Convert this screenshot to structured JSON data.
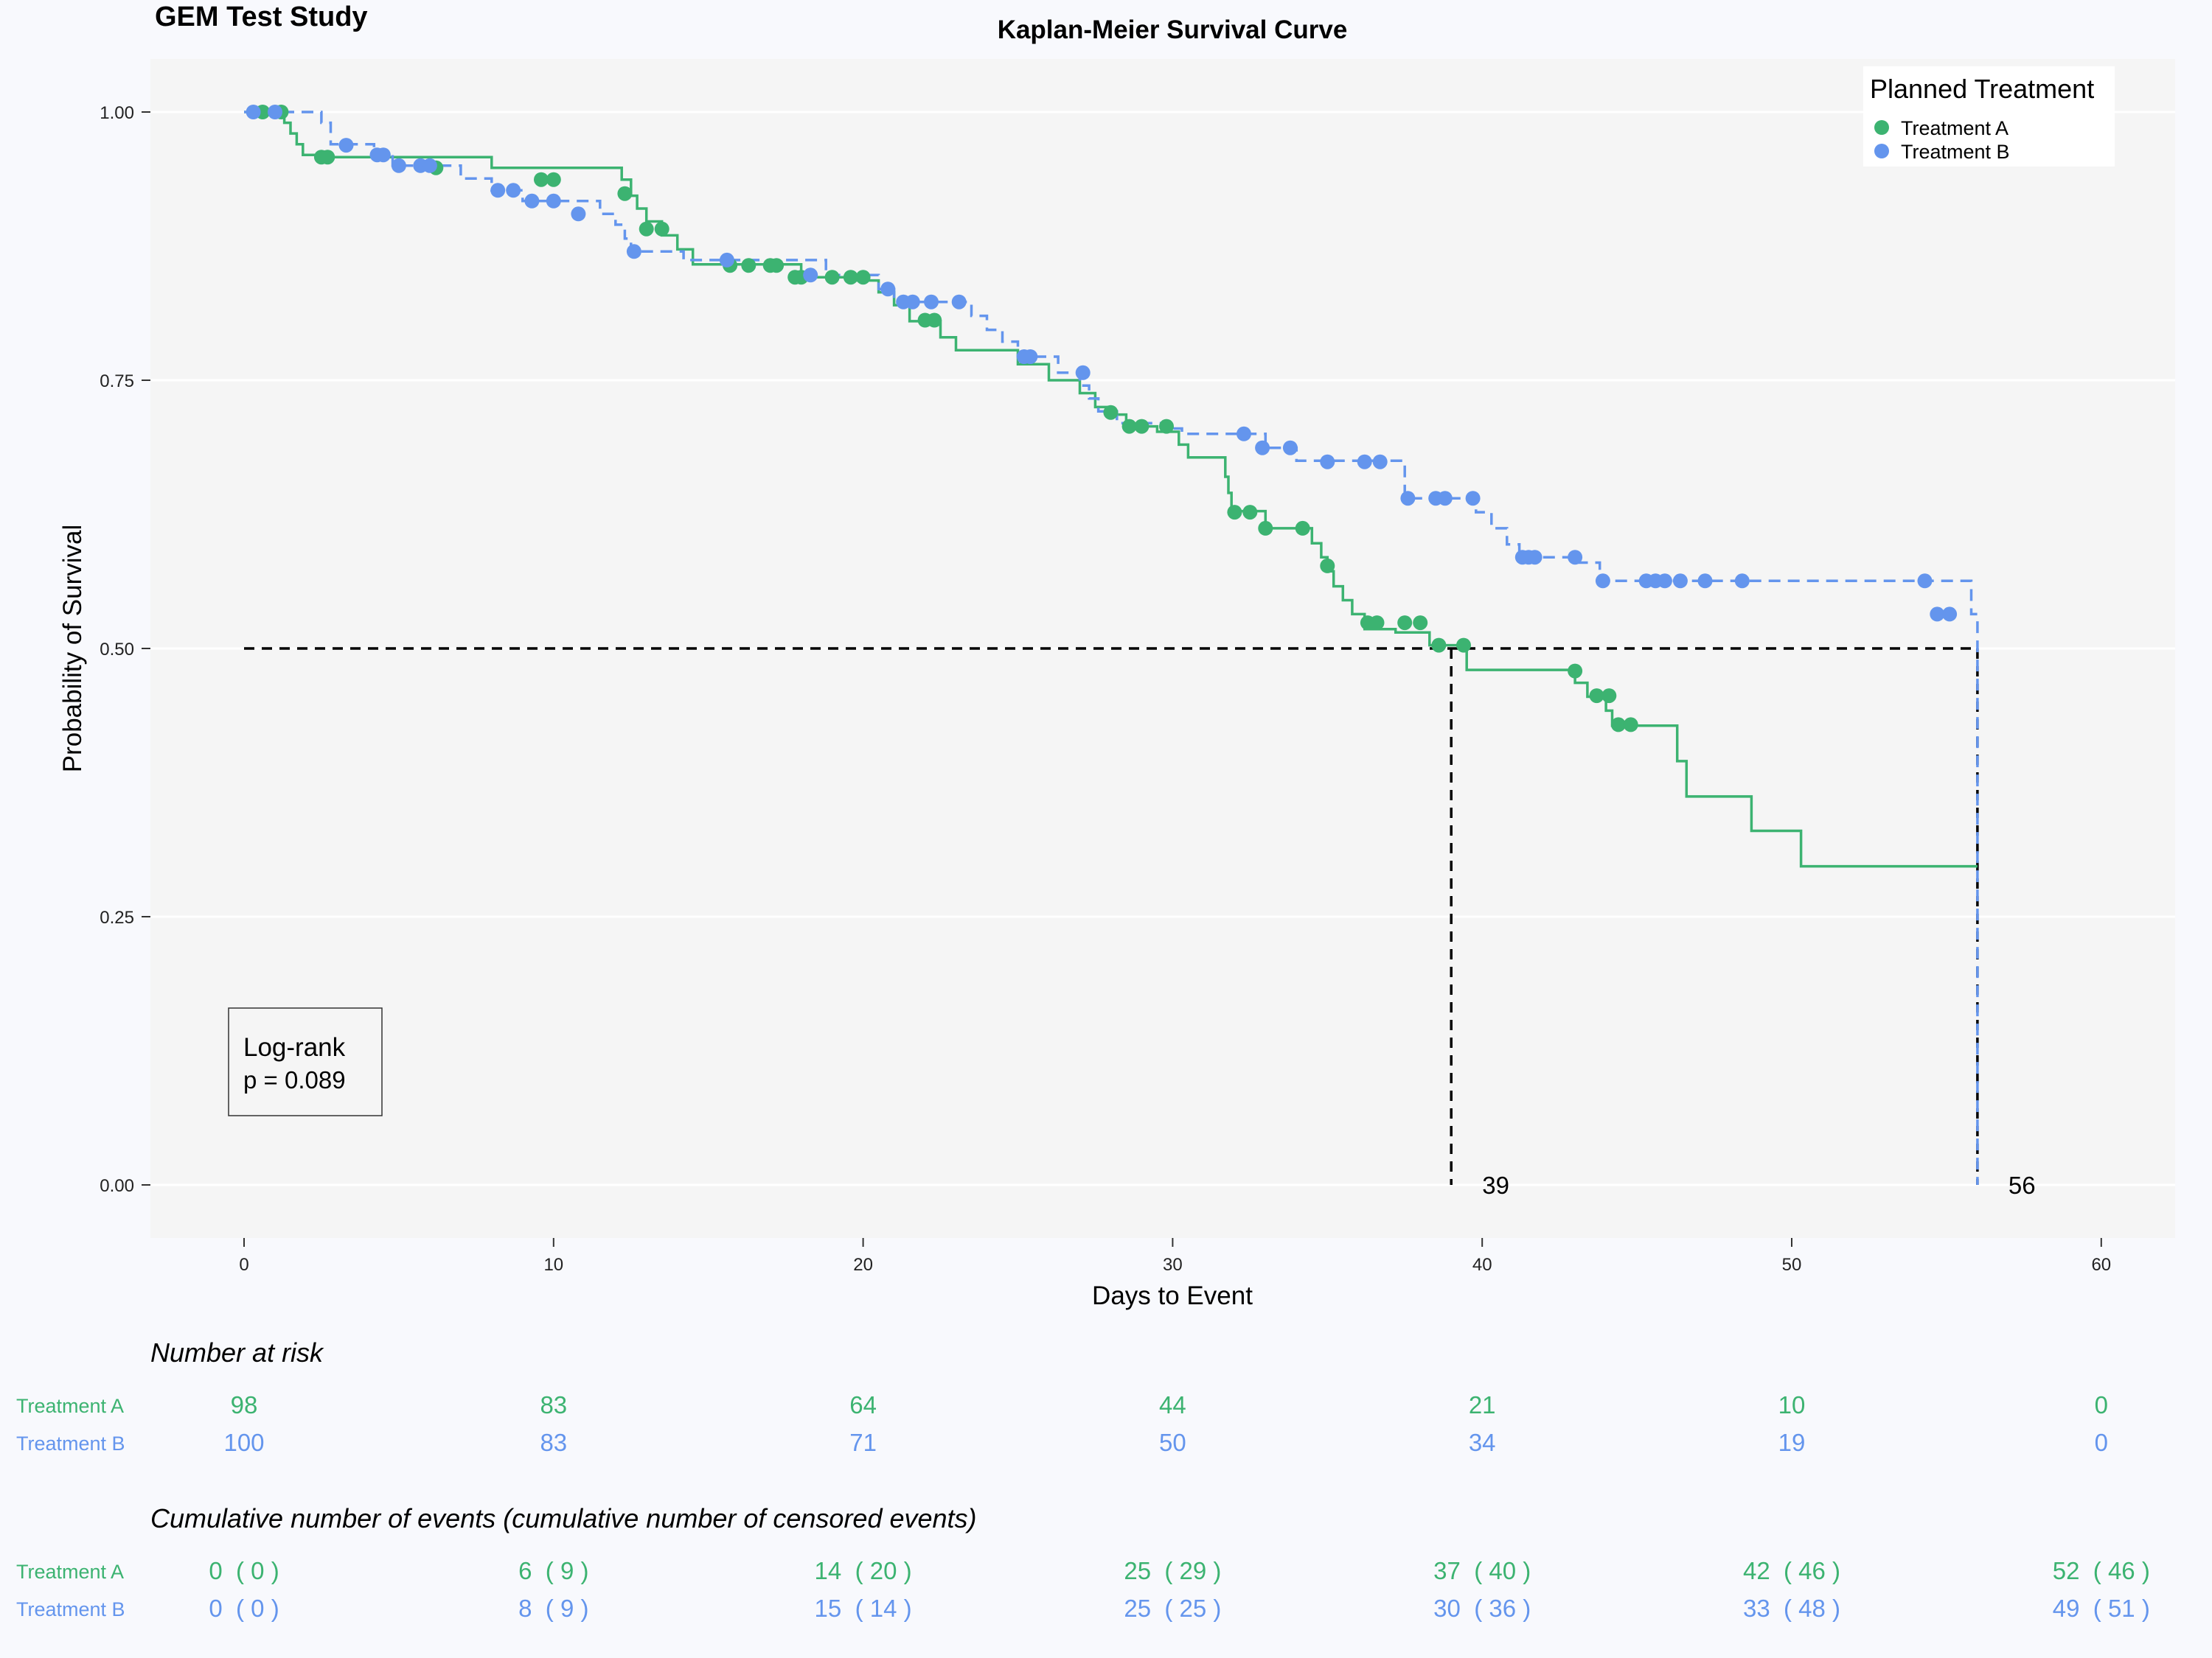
{
  "study_title": "GEM Test Study",
  "colors": {
    "treatment_a": "#3cb371",
    "treatment_b": "#6495ed",
    "panel": "#f5f5f5",
    "median_line": "#000000"
  },
  "chart_data": {
    "type": "line",
    "title": "Kaplan-Meier Survival Curve",
    "xlabel": "Days to Event",
    "ylabel": "Probability of Survival",
    "xlim": [
      -3,
      62
    ],
    "ylim": [
      -0.05,
      1.05
    ],
    "x_ticks": [
      0,
      10,
      20,
      30,
      40,
      50,
      60
    ],
    "y_ticks": [
      0,
      0.25,
      0.5,
      0.75,
      1.0
    ],
    "y_tick_labels": [
      "0.00",
      "0.25",
      "0.50",
      "0.75",
      "1.00"
    ],
    "grid": true,
    "legend": {
      "title": "Planned Treatment",
      "position": "top-right"
    },
    "series": [
      {
        "name": "Treatment A",
        "color": "#3cb371",
        "line_style": "solid",
        "steps": [
          [
            0,
            1.0
          ],
          [
            1.3,
            0.99
          ],
          [
            1.5,
            0.98
          ],
          [
            1.7,
            0.97
          ],
          [
            1.9,
            0.96
          ],
          [
            2.5,
            0.958
          ],
          [
            8,
            0.948
          ],
          [
            12.2,
            0.937
          ],
          [
            12.5,
            0.922
          ],
          [
            12.7,
            0.91
          ],
          [
            13.0,
            0.898
          ],
          [
            13.5,
            0.885
          ],
          [
            14.0,
            0.872
          ],
          [
            14.5,
            0.858
          ],
          [
            18.0,
            0.846
          ],
          [
            19.5,
            0.843
          ],
          [
            20.5,
            0.832
          ],
          [
            21.0,
            0.82
          ],
          [
            21.5,
            0.805
          ],
          [
            22.5,
            0.79
          ],
          [
            23.0,
            0.778
          ],
          [
            25.0,
            0.765
          ],
          [
            26.0,
            0.75
          ],
          [
            27.0,
            0.738
          ],
          [
            27.5,
            0.725
          ],
          [
            28.0,
            0.718
          ],
          [
            28.5,
            0.707
          ],
          [
            29.5,
            0.702
          ],
          [
            30.2,
            0.69
          ],
          [
            30.5,
            0.678
          ],
          [
            31.7,
            0.66
          ],
          [
            31.8,
            0.645
          ],
          [
            31.9,
            0.628
          ],
          [
            33.0,
            0.612
          ],
          [
            34.5,
            0.598
          ],
          [
            34.8,
            0.585
          ],
          [
            35.0,
            0.572
          ],
          [
            35.2,
            0.558
          ],
          [
            35.5,
            0.545
          ],
          [
            35.8,
            0.532
          ],
          [
            36.2,
            0.518
          ],
          [
            37.2,
            0.515
          ],
          [
            38.3,
            0.503
          ],
          [
            39.5,
            0.48
          ],
          [
            43.0,
            0.468
          ],
          [
            43.4,
            0.455
          ],
          [
            44.0,
            0.442
          ],
          [
            44.2,
            0.428
          ],
          [
            46.3,
            0.395
          ],
          [
            46.6,
            0.362
          ],
          [
            48.7,
            0.33
          ],
          [
            50.3,
            0.297
          ],
          [
            56.0,
            0.297
          ]
        ],
        "censored": [
          [
            0.6,
            1.0
          ],
          [
            1.2,
            1.0
          ],
          [
            2.5,
            0.958
          ],
          [
            2.7,
            0.958
          ],
          [
            6.2,
            0.948
          ],
          [
            9.6,
            0.937
          ],
          [
            10.0,
            0.937
          ],
          [
            12.3,
            0.924
          ],
          [
            13.0,
            0.891
          ],
          [
            13.5,
            0.891
          ],
          [
            15.7,
            0.857
          ],
          [
            16.3,
            0.857
          ],
          [
            17.0,
            0.857
          ],
          [
            17.2,
            0.857
          ],
          [
            17.8,
            0.846
          ],
          [
            18.0,
            0.846
          ],
          [
            19.0,
            0.846
          ],
          [
            19.6,
            0.846
          ],
          [
            20.0,
            0.846
          ],
          [
            22.0,
            0.806
          ],
          [
            22.3,
            0.806
          ],
          [
            28.0,
            0.72
          ],
          [
            28.6,
            0.707
          ],
          [
            29.0,
            0.707
          ],
          [
            29.8,
            0.707
          ],
          [
            32.0,
            0.627
          ],
          [
            32.5,
            0.627
          ],
          [
            33.0,
            0.612
          ],
          [
            34.2,
            0.612
          ],
          [
            35.0,
            0.577
          ],
          [
            36.3,
            0.524
          ],
          [
            36.6,
            0.524
          ],
          [
            37.5,
            0.524
          ],
          [
            38.0,
            0.524
          ],
          [
            38.6,
            0.503
          ],
          [
            39.4,
            0.503
          ],
          [
            43.0,
            0.479
          ],
          [
            43.7,
            0.456
          ],
          [
            44.1,
            0.456
          ],
          [
            44.4,
            0.429
          ],
          [
            44.8,
            0.429
          ]
        ]
      },
      {
        "name": "Treatment B",
        "color": "#6495ed",
        "line_style": "dashed",
        "steps": [
          [
            0,
            1.0
          ],
          [
            2.5,
            0.99
          ],
          [
            2.8,
            0.97
          ],
          [
            4.2,
            0.96
          ],
          [
            4.8,
            0.95
          ],
          [
            7.0,
            0.938
          ],
          [
            8.0,
            0.927
          ],
          [
            9.0,
            0.917
          ],
          [
            11.5,
            0.905
          ],
          [
            12.0,
            0.895
          ],
          [
            12.3,
            0.882
          ],
          [
            12.5,
            0.87
          ],
          [
            14.2,
            0.862
          ],
          [
            18.8,
            0.848
          ],
          [
            20.5,
            0.835
          ],
          [
            21.0,
            0.823
          ],
          [
            23.5,
            0.81
          ],
          [
            24.0,
            0.797
          ],
          [
            24.5,
            0.786
          ],
          [
            25.0,
            0.772
          ],
          [
            26.3,
            0.757
          ],
          [
            27.0,
            0.745
          ],
          [
            27.3,
            0.733
          ],
          [
            27.6,
            0.721
          ],
          [
            28.2,
            0.71
          ],
          [
            29.8,
            0.705
          ],
          [
            30.3,
            0.7
          ],
          [
            33.0,
            0.687
          ],
          [
            34.0,
            0.675
          ],
          [
            37.5,
            0.64
          ],
          [
            39.8,
            0.627
          ],
          [
            40.3,
            0.612
          ],
          [
            40.8,
            0.597
          ],
          [
            41.2,
            0.585
          ],
          [
            43.0,
            0.58
          ],
          [
            43.8,
            0.563
          ],
          [
            55.8,
            0.532
          ],
          [
            56.0,
            0.0
          ]
        ],
        "censored": [
          [
            0.3,
            1.0
          ],
          [
            1.0,
            1.0
          ],
          [
            3.3,
            0.969
          ],
          [
            4.3,
            0.96
          ],
          [
            4.5,
            0.96
          ],
          [
            5.0,
            0.95
          ],
          [
            5.7,
            0.95
          ],
          [
            6.0,
            0.95
          ],
          [
            8.2,
            0.927
          ],
          [
            8.7,
            0.927
          ],
          [
            9.3,
            0.917
          ],
          [
            10.0,
            0.917
          ],
          [
            10.8,
            0.905
          ],
          [
            12.6,
            0.87
          ],
          [
            15.6,
            0.862
          ],
          [
            18.3,
            0.848
          ],
          [
            20.8,
            0.835
          ],
          [
            21.3,
            0.823
          ],
          [
            21.6,
            0.823
          ],
          [
            22.2,
            0.823
          ],
          [
            23.1,
            0.823
          ],
          [
            25.2,
            0.772
          ],
          [
            25.4,
            0.772
          ],
          [
            27.1,
            0.757
          ],
          [
            32.3,
            0.7
          ],
          [
            32.9,
            0.687
          ],
          [
            33.8,
            0.687
          ],
          [
            35.0,
            0.674
          ],
          [
            36.2,
            0.674
          ],
          [
            36.7,
            0.674
          ],
          [
            37.6,
            0.64
          ],
          [
            38.5,
            0.64
          ],
          [
            38.8,
            0.64
          ],
          [
            39.7,
            0.64
          ],
          [
            41.3,
            0.585
          ],
          [
            41.5,
            0.585
          ],
          [
            41.7,
            0.585
          ],
          [
            43.0,
            0.585
          ],
          [
            43.9,
            0.563
          ],
          [
            45.3,
            0.563
          ],
          [
            45.6,
            0.563
          ],
          [
            45.9,
            0.563
          ],
          [
            46.4,
            0.563
          ],
          [
            47.2,
            0.563
          ],
          [
            48.4,
            0.563
          ],
          [
            54.3,
            0.563
          ],
          [
            54.7,
            0.532
          ],
          [
            55.1,
            0.532
          ]
        ]
      }
    ],
    "median_survival": {
      "survival_level": 0.5,
      "times": [
        39,
        56
      ],
      "labels": [
        "39",
        "56"
      ]
    },
    "annotation": {
      "line1": "Log-rank",
      "line2": "p = 0.089"
    }
  },
  "risk_table": {
    "title": "Number at risk",
    "rows": [
      {
        "label": "Treatment A",
        "values": [
          "98",
          "83",
          "64",
          "44",
          "21",
          "10",
          "0"
        ]
      },
      {
        "label": "Treatment B",
        "values": [
          "100",
          "83",
          "71",
          "50",
          "34",
          "19",
          "0"
        ]
      }
    ]
  },
  "events_table": {
    "title": "Cumulative number of events (cumulative number of censored events)",
    "rows": [
      {
        "label": "Treatment A",
        "values": [
          "0  ( 0 )",
          "6  ( 9 )",
          "14  ( 20 )",
          "25  ( 29 )",
          "37  ( 40 )",
          "42  ( 46 )",
          "52  ( 46 )"
        ]
      },
      {
        "label": "Treatment B",
        "values": [
          "0  ( 0 )",
          "8  ( 9 )",
          "15  ( 14 )",
          "25  ( 25 )",
          "30  ( 36 )",
          "33  ( 48 )",
          "49  ( 51 )"
        ]
      }
    ]
  }
}
